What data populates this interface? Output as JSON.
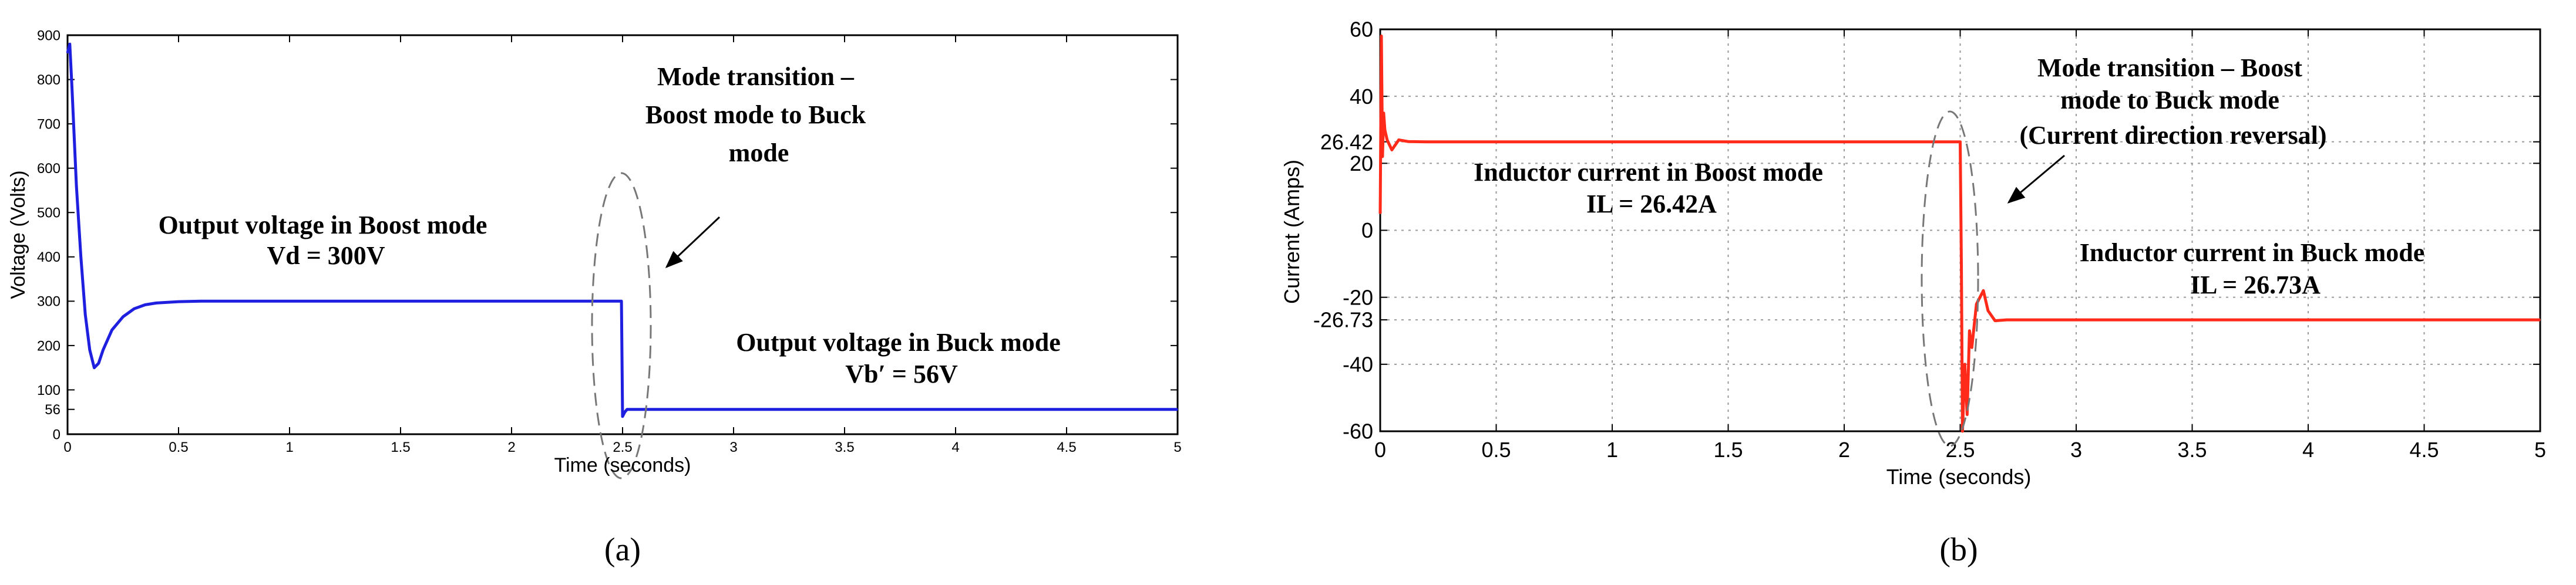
{
  "chart_data": [
    {
      "type": "line",
      "caption": "(a)",
      "xlabel": "Time (seconds)",
      "ylabel": "Voltage (Volts)",
      "xlim": [
        0,
        5
      ],
      "ylim": [
        0,
        900
      ],
      "xticks": [
        "0",
        "0.5",
        "1",
        "1.5",
        "2",
        "2.5",
        "3",
        "3.5",
        "4",
        "4.5",
        "5"
      ],
      "yticks": [
        {
          "value": 0,
          "label": "0"
        },
        {
          "value": 56,
          "label": "56"
        },
        {
          "value": 100,
          "label": "100"
        },
        {
          "value": 200,
          "label": "200"
        },
        {
          "value": 300,
          "label": "300"
        },
        {
          "value": 400,
          "label": "400"
        },
        {
          "value": 500,
          "label": "500"
        },
        {
          "value": 600,
          "label": "600"
        },
        {
          "value": 700,
          "label": "700"
        },
        {
          "value": 800,
          "label": "800"
        },
        {
          "value": 900,
          "label": "900"
        }
      ],
      "grid": false,
      "line_color": "#1f1fe0",
      "x": [
        0,
        0.01,
        0.02,
        0.04,
        0.06,
        0.08,
        0.1,
        0.12,
        0.14,
        0.16,
        0.2,
        0.25,
        0.3,
        0.35,
        0.4,
        0.5,
        0.6,
        0.8,
        1.0,
        1.5,
        2.0,
        2.49,
        2.495,
        2.5,
        2.51,
        2.52,
        2.55,
        2.6,
        3.0,
        3.5,
        4.0,
        4.5,
        5.0
      ],
      "y": [
        860,
        880,
        780,
        560,
        400,
        270,
        190,
        150,
        160,
        190,
        235,
        265,
        283,
        292,
        296,
        299,
        300,
        300,
        300,
        300,
        300,
        300,
        300,
        40,
        50,
        56,
        56,
        56,
        56,
        56,
        56,
        56,
        56
      ],
      "annotations": [
        {
          "lines": [
            "Output voltage in Boost mode",
            "Vd = 300V"
          ]
        },
        {
          "lines": [
            "Mode transition –",
            "Boost mode to Buck",
            "mode"
          ]
        },
        {
          "lines": [
            "Output voltage in Buck mode",
            "Vb′ = 56V"
          ]
        }
      ]
    },
    {
      "type": "line",
      "caption": "(b)",
      "xlabel": "Time (seconds)",
      "ylabel": "Current (Amps)",
      "xlim": [
        0,
        5
      ],
      "ylim": [
        -60,
        60
      ],
      "xticks": [
        "0",
        "0.5",
        "1",
        "1.5",
        "2",
        "2.5",
        "3",
        "3.5",
        "4",
        "4.5",
        "5"
      ],
      "yticks": [
        {
          "value": 60,
          "label": "60"
        },
        {
          "value": 40,
          "label": "40"
        },
        {
          "value": 26.42,
          "label": "26.42"
        },
        {
          "value": 20,
          "label": "20"
        },
        {
          "value": 0,
          "label": "0"
        },
        {
          "value": -20,
          "label": "-20"
        },
        {
          "value": -26.73,
          "label": "-26.73"
        },
        {
          "value": -40,
          "label": "-40"
        },
        {
          "value": -60,
          "label": "-60"
        }
      ],
      "grid": true,
      "line_color": "#ff2a1a",
      "x": [
        0,
        0.005,
        0.01,
        0.015,
        0.02,
        0.03,
        0.05,
        0.08,
        0.12,
        0.2,
        0.5,
        1.0,
        1.5,
        2.0,
        2.45,
        2.5,
        2.505,
        2.51,
        2.52,
        2.53,
        2.54,
        2.55,
        2.57,
        2.6,
        2.62,
        2.65,
        2.7,
        3.0,
        3.5,
        4.0,
        4.5,
        5.0
      ],
      "y": [
        5,
        58,
        22,
        35,
        30,
        27,
        24,
        27,
        26.5,
        26.42,
        26.42,
        26.42,
        26.42,
        26.42,
        26.42,
        26.42,
        -10,
        -60,
        -40,
        -55,
        -30,
        -35,
        -22,
        -18,
        -24,
        -27,
        -26.73,
        -26.73,
        -26.73,
        -26.73,
        -26.73,
        -26.73
      ],
      "annotations": [
        {
          "lines": [
            "Inductor current in Boost mode",
            "IL = 26.42A"
          ]
        },
        {
          "lines": [
            "Mode transition – Boost",
            "mode to Buck mode",
            "(Current direction reversal)"
          ]
        },
        {
          "lines": [
            "Inductor current in Buck mode",
            "IL = 26.73A"
          ]
        }
      ]
    }
  ]
}
